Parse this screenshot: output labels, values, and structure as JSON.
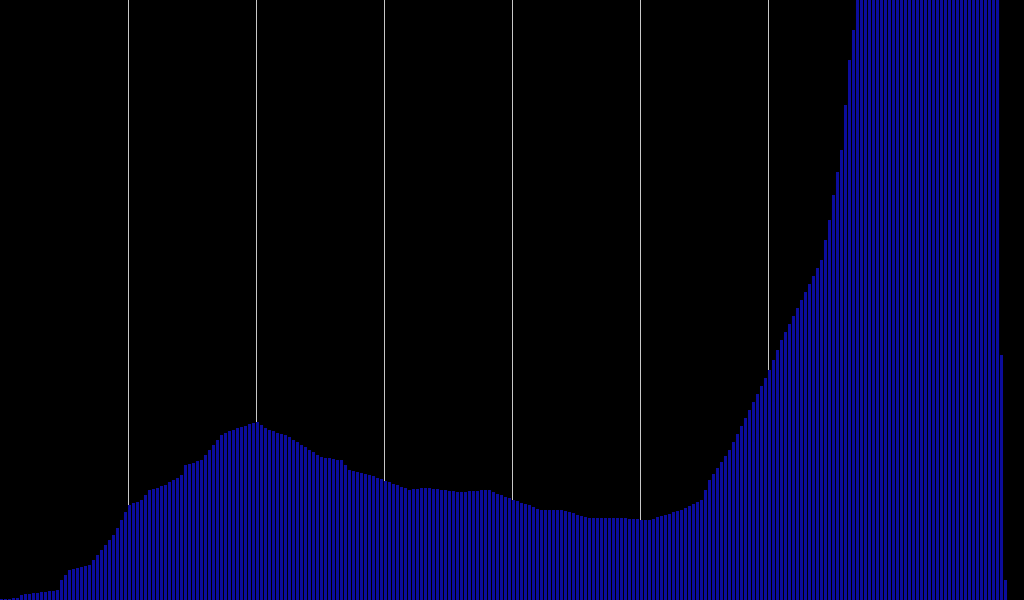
{
  "chart_data": {
    "type": "histogram",
    "color": "#0c0c9c",
    "background": "#000000",
    "grid": true,
    "grid_color": "#c8c8c8",
    "xlim": [
      0,
      256
    ],
    "ylim": [
      0,
      600
    ],
    "xticks": [
      32,
      64,
      96,
      128,
      160,
      192,
      224
    ],
    "bins": [
      0,
      1,
      2,
      3,
      4,
      5,
      6,
      7,
      8,
      9,
      10,
      11,
      12,
      13,
      14,
      15,
      16,
      17,
      18,
      19,
      20,
      21,
      22,
      23,
      24,
      25,
      26,
      27,
      28,
      29,
      30,
      31,
      32,
      33,
      34,
      35,
      36,
      37,
      38,
      39,
      40,
      41,
      42,
      43,
      44,
      45,
      46,
      47,
      48,
      49,
      50,
      51,
      52,
      53,
      54,
      55,
      56,
      57,
      58,
      59,
      60,
      61,
      62,
      63,
      64,
      65,
      66,
      67,
      68,
      69,
      70,
      71,
      72,
      73,
      74,
      75,
      76,
      77,
      78,
      79,
      80,
      81,
      82,
      83,
      84,
      85,
      86,
      87,
      88,
      89,
      90,
      91,
      92,
      93,
      94,
      95,
      96,
      97,
      98,
      99,
      100,
      101,
      102,
      103,
      104,
      105,
      106,
      107,
      108,
      109,
      110,
      111,
      112,
      113,
      114,
      115,
      116,
      117,
      118,
      119,
      120,
      121,
      122,
      123,
      124,
      125,
      126,
      127,
      128,
      129,
      130,
      131,
      132,
      133,
      134,
      135,
      136,
      137,
      138,
      139,
      140,
      141,
      142,
      143,
      144,
      145,
      146,
      147,
      148,
      149,
      150,
      151,
      152,
      153,
      154,
      155,
      156,
      157,
      158,
      159,
      160,
      161,
      162,
      163,
      164,
      165,
      166,
      167,
      168,
      169,
      170,
      171,
      172,
      173,
      174,
      175,
      176,
      177,
      178,
      179,
      180,
      181,
      182,
      183,
      184,
      185,
      186,
      187,
      188,
      189,
      190,
      191,
      192,
      193,
      194,
      195,
      196,
      197,
      198,
      199,
      200,
      201,
      202,
      203,
      204,
      205,
      206,
      207,
      208,
      209,
      210,
      211,
      212,
      213,
      214,
      215,
      216,
      217,
      218,
      219,
      220,
      221,
      222,
      223,
      224,
      225,
      226,
      227,
      228,
      229,
      230,
      231,
      232,
      233,
      234,
      235,
      236,
      237,
      238,
      239,
      240,
      241,
      242,
      243,
      244,
      245,
      246,
      247,
      248,
      249,
      250,
      251,
      252,
      253,
      254,
      255,
      256
    ],
    "values": [
      1,
      1,
      1,
      2,
      2,
      5,
      6,
      6,
      7,
      7,
      8,
      8,
      9,
      9,
      10,
      20,
      25,
      30,
      31,
      32,
      33,
      34,
      35,
      40,
      45,
      50,
      55,
      60,
      65,
      72,
      80,
      88,
      95,
      97,
      98,
      100,
      105,
      110,
      111,
      112,
      114,
      115,
      118,
      120,
      122,
      125,
      135,
      136,
      137,
      139,
      140,
      145,
      150,
      155,
      160,
      165,
      167,
      169,
      170,
      172,
      173,
      174,
      176,
      177,
      178,
      175,
      172,
      170,
      169,
      167,
      166,
      165,
      163,
      160,
      158,
      155,
      153,
      150,
      148,
      145,
      143,
      142,
      142,
      141,
      140,
      140,
      135,
      130,
      129,
      128,
      127,
      126,
      125,
      124,
      122,
      121,
      119,
      118,
      116,
      115,
      113,
      112,
      110,
      111,
      111,
      112,
      112,
      112,
      111,
      111,
      110,
      110,
      109,
      109,
      108,
      108,
      108,
      109,
      109,
      109,
      110,
      110,
      110,
      108,
      106,
      105,
      103,
      102,
      100,
      99,
      97,
      96,
      95,
      93,
      91,
      90,
      90,
      90,
      90,
      90,
      90,
      89,
      88,
      87,
      85,
      84,
      83,
      82,
      82,
      82,
      82,
      82,
      82,
      82,
      82,
      82,
      82,
      81,
      81,
      81,
      80,
      80,
      80,
      81,
      83,
      84,
      85,
      86,
      88,
      89,
      90,
      92,
      94,
      96,
      98,
      100,
      110,
      120,
      126,
      132,
      138,
      144,
      150,
      158,
      166,
      174,
      182,
      190,
      198,
      206,
      214,
      222,
      230,
      240,
      250,
      260,
      268,
      276,
      284,
      292,
      300,
      308,
      316,
      324,
      332,
      340,
      360,
      380,
      405,
      428,
      450,
      495,
      540,
      570,
      600,
      600,
      600,
      600,
      600,
      600,
      600,
      600,
      600,
      600,
      600,
      600,
      600,
      600,
      600,
      600,
      600,
      600,
      600,
      600,
      600,
      600,
      600,
      600,
      600,
      600,
      600,
      600,
      600,
      600,
      600,
      600,
      600,
      600,
      600,
      600,
      245,
      20,
      0,
      0,
      0,
      0
    ]
  }
}
